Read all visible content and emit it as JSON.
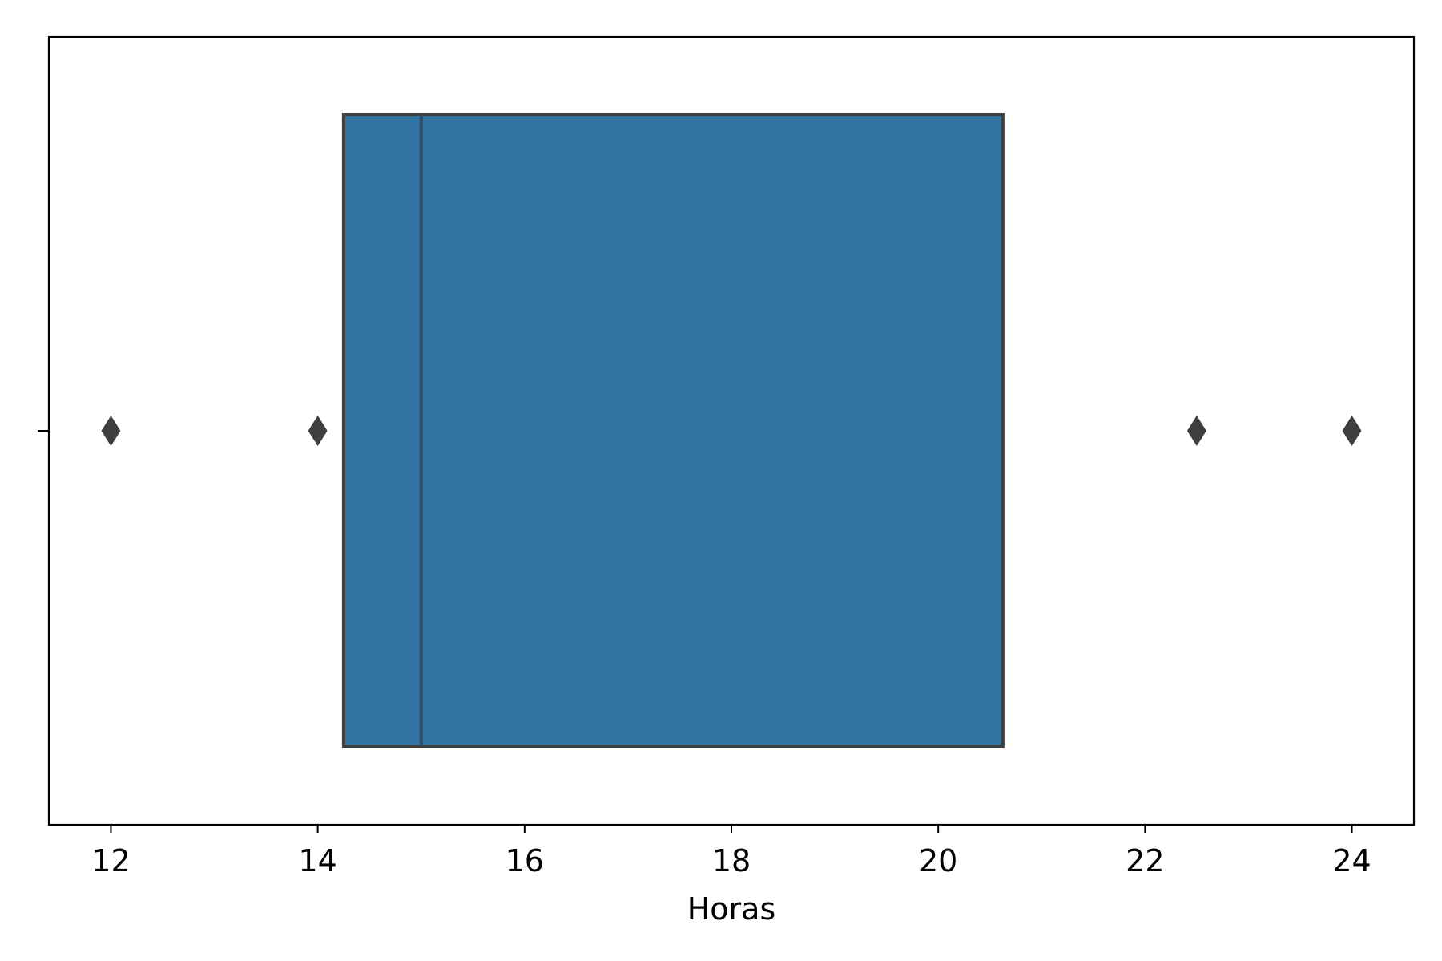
{
  "chart_data": {
    "type": "boxplot",
    "orientation": "horizontal",
    "title": "",
    "xlabel": "Horas",
    "ylabel": "",
    "xlim": [
      11.4,
      24.6
    ],
    "x_ticks": [
      12,
      14,
      16,
      18,
      20,
      22,
      24
    ],
    "x_tick_labels": [
      "12",
      "14",
      "16",
      "18",
      "20",
      "22",
      "24"
    ],
    "grid": false,
    "legend": "none",
    "box": {
      "q1": 14.25,
      "median": 15.0,
      "q3": 20.625,
      "outliers": [
        12.0,
        14.0,
        22.5,
        24.0
      ]
    },
    "colors": {
      "box_fill": "#3274a1",
      "box_edge": "#3f3f3f",
      "median_line": "#2e4a66",
      "outlier": "#3f3f3f",
      "axis": "#000000"
    }
  }
}
